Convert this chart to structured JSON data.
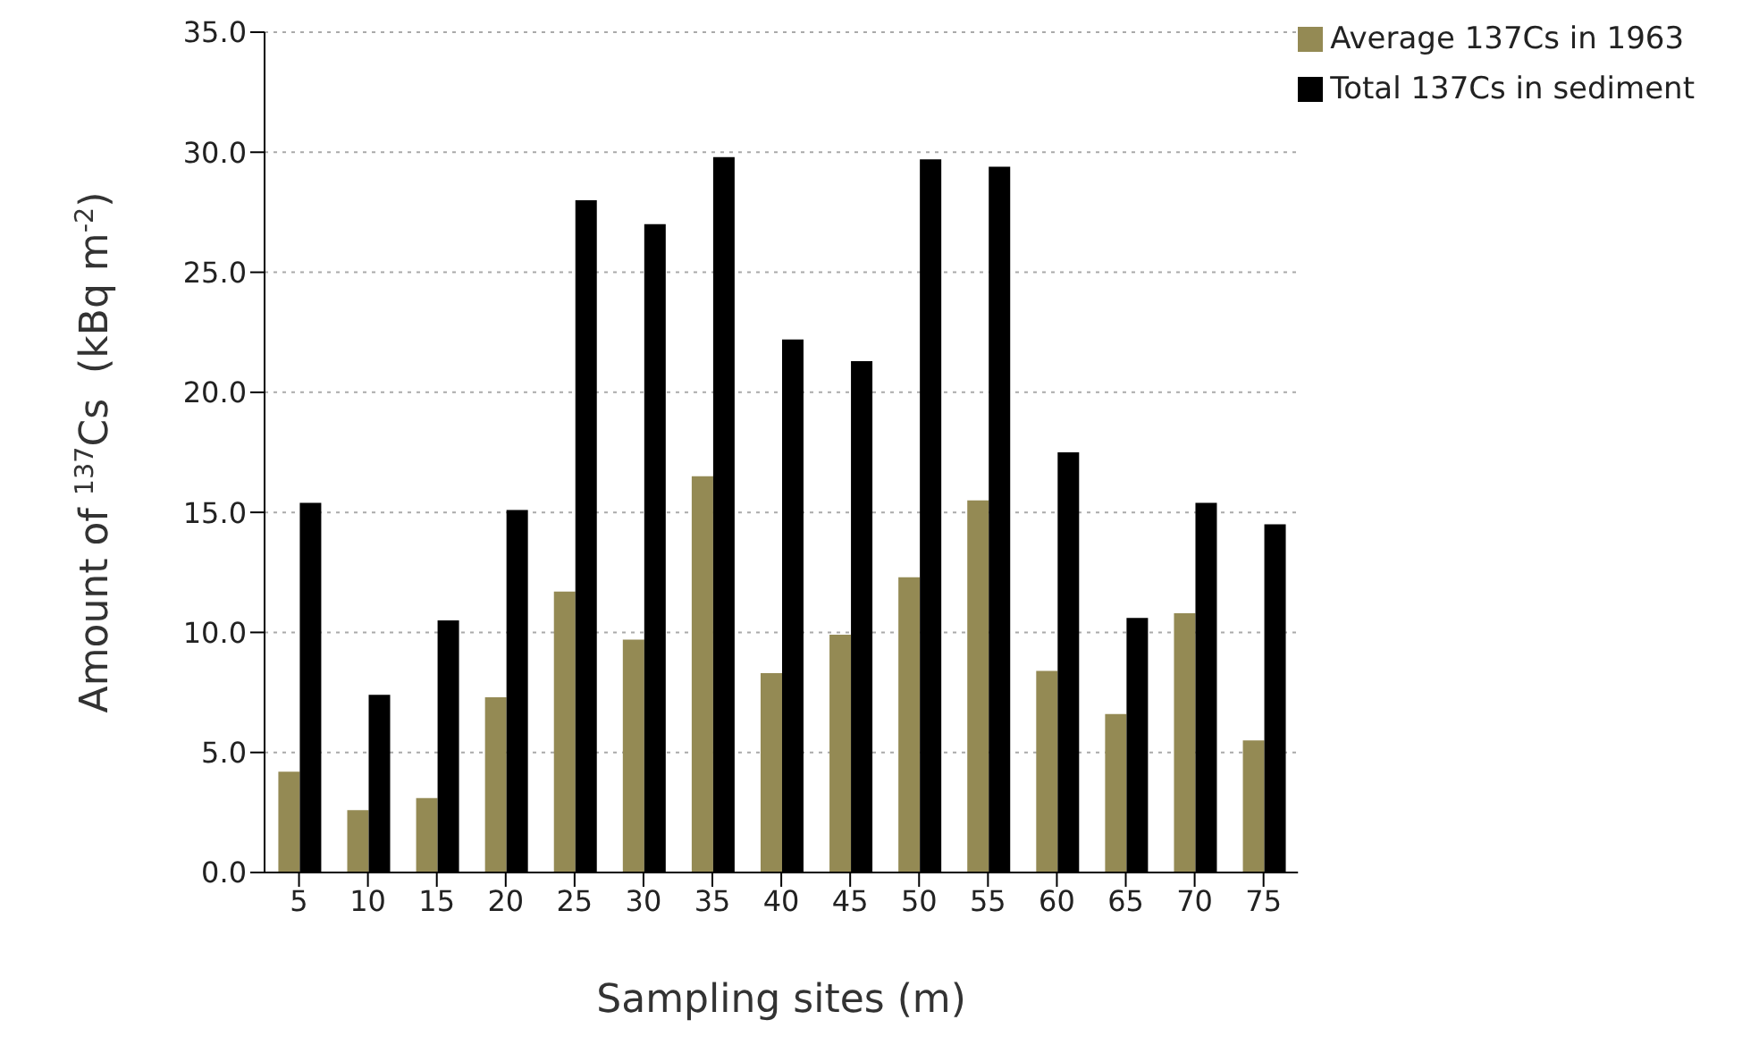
{
  "chart_data": {
    "type": "bar",
    "xlabel": "Sampling sites (m)",
    "ylabel": "Amount of $^{137}$Cs  (kBq m$^{-2}$)",
    "categories": [
      "5",
      "10",
      "15",
      "20",
      "25",
      "30",
      "35",
      "40",
      "45",
      "50",
      "55",
      "60",
      "65",
      "70",
      "75"
    ],
    "series": [
      {
        "name": "Average  137Cs in 1963",
        "color": "#948a54",
        "values": [
          4.2,
          2.6,
          3.1,
          7.3,
          11.7,
          9.7,
          16.5,
          8.3,
          9.9,
          12.3,
          15.5,
          8.4,
          6.6,
          10.8,
          5.5
        ]
      },
      {
        "name": "Total 137Cs in sediment",
        "color": "#000000",
        "values": [
          15.4,
          7.4,
          10.5,
          15.1,
          28.0,
          27.0,
          29.8,
          22.2,
          21.3,
          29.7,
          29.4,
          17.5,
          10.6,
          15.4,
          14.5
        ]
      }
    ],
    "ylim": [
      0,
      35
    ],
    "yticks": [
      {
        "value": 0,
        "label": "0.0"
      },
      {
        "value": 5,
        "label": "5.0"
      },
      {
        "value": 10,
        "label": "10.0"
      },
      {
        "value": 15,
        "label": "15.0"
      },
      {
        "value": 20,
        "label": "20.0"
      },
      {
        "value": 25,
        "label": "25.0"
      },
      {
        "value": 30,
        "label": "30.0"
      },
      {
        "value": 35,
        "label": "35.0"
      }
    ],
    "grid": "y",
    "legend": "top right"
  }
}
